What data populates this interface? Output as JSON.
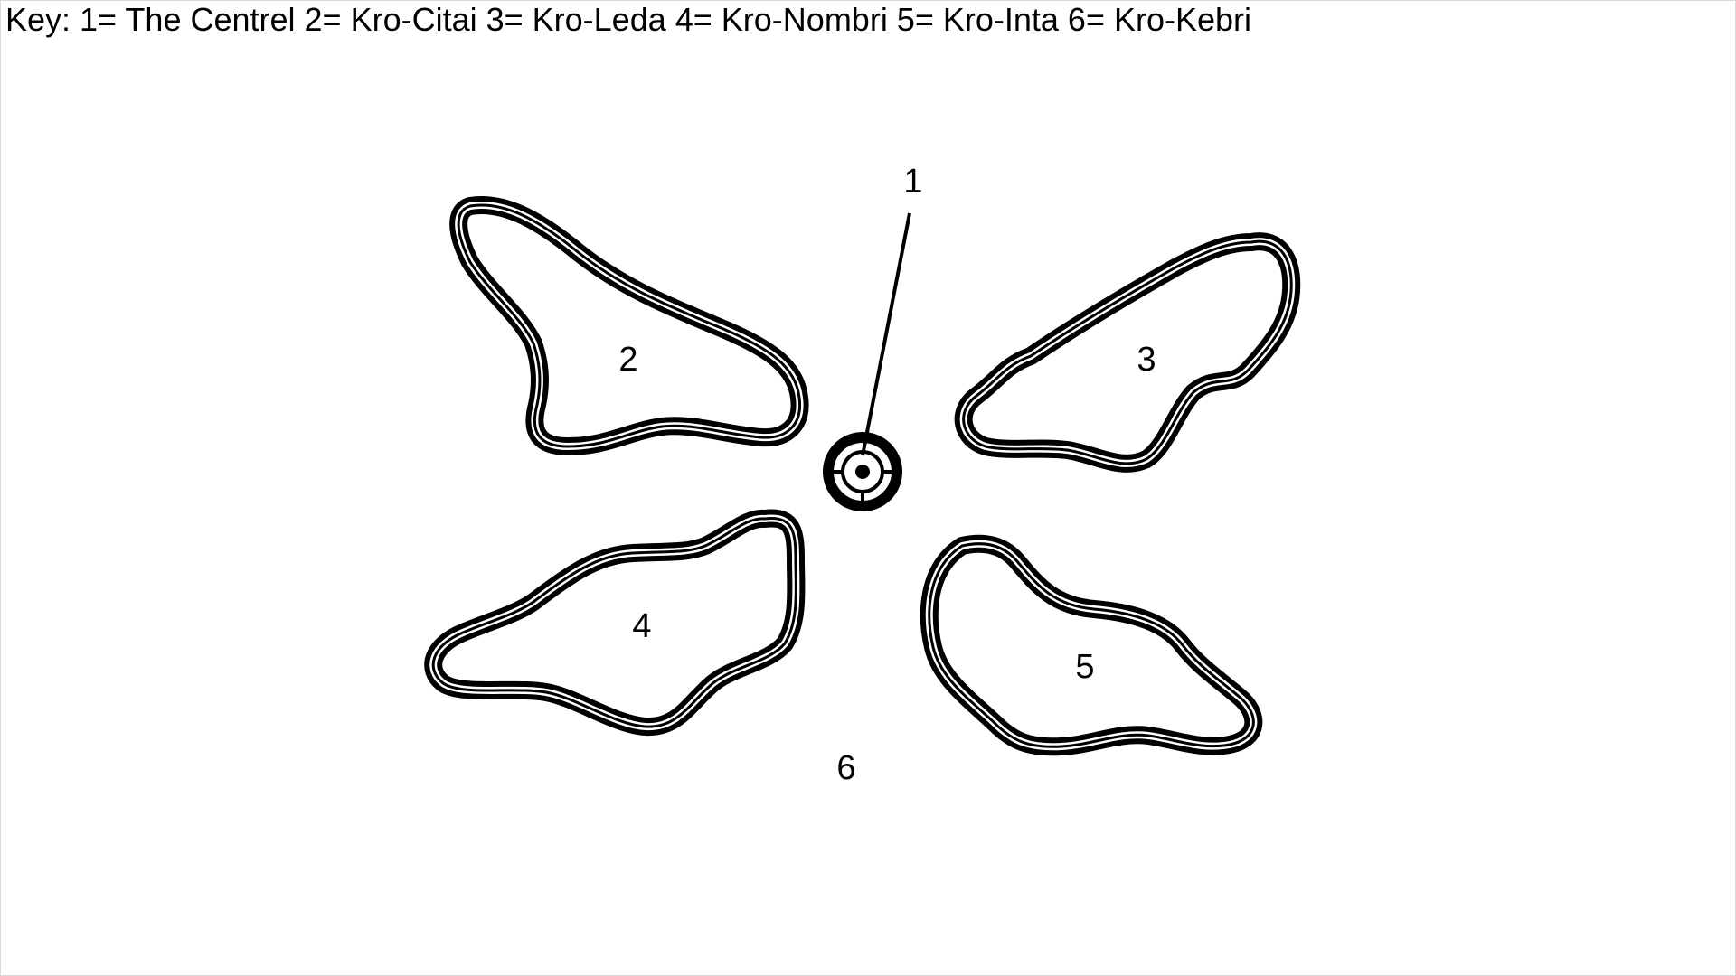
{
  "key": {
    "text": "Key: 1= The Centrel 2= Kro-Citai 3= Kro-Leda 4= Kro-Nombri 5= Kro-Inta 6= Kro-Kebri"
  },
  "labels": {
    "centre": "1",
    "kro_citai": "2",
    "kro_leda": "3",
    "kro_nombri": "4",
    "kro_inta": "5",
    "kro_kebri": "6"
  },
  "colors": {
    "ink": "#000000",
    "background": "#ffffff"
  }
}
